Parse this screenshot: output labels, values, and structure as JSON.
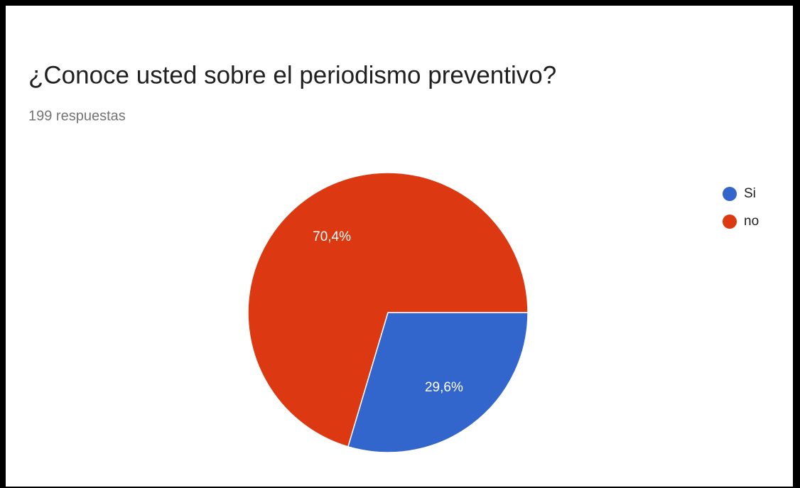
{
  "chart_data": {
    "type": "pie",
    "title": "¿Conoce usted sobre el periodismo preventivo?",
    "subtitle": "199 respuestas",
    "categories": [
      "Si",
      "no"
    ],
    "values": [
      29.6,
      70.4
    ],
    "value_labels": [
      "29,6%",
      "70,4%"
    ],
    "colors": [
      "#3366cc",
      "#dc3912"
    ],
    "legend": "right"
  }
}
